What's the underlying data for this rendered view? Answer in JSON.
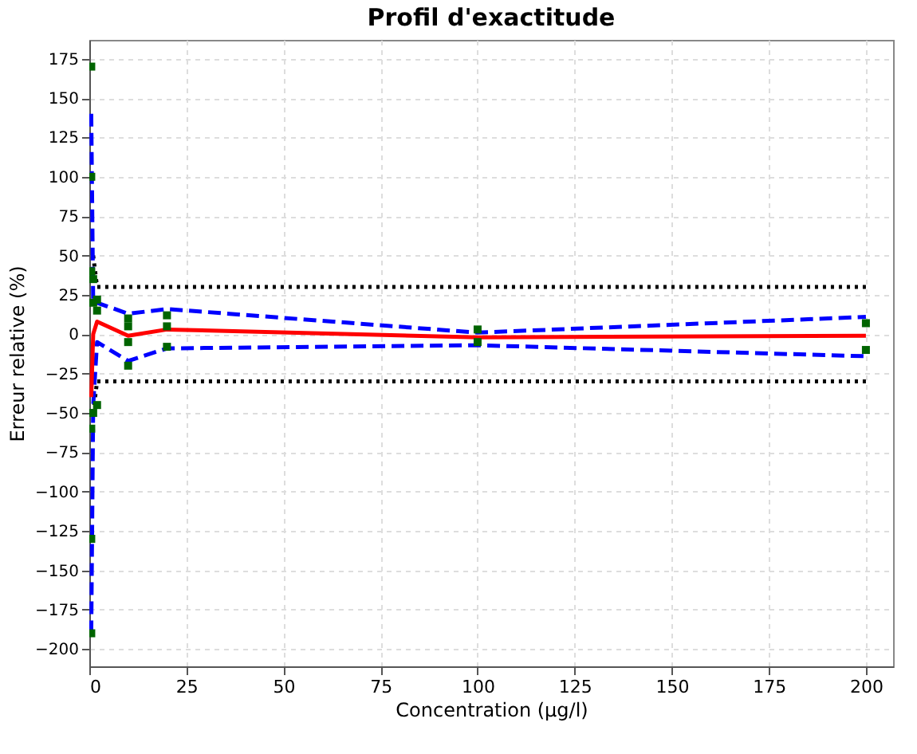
{
  "chart_data": {
    "type": "line",
    "title": "Profil d'exactitude",
    "xlabel": "Concentration (µg/l)",
    "ylabel": "Erreur relative (%)",
    "xlim": [
      0,
      207
    ],
    "xticks": [
      0,
      25,
      50,
      75,
      100,
      125,
      150,
      175,
      200
    ],
    "ylim": [
      -211,
      187
    ],
    "yticks": [
      -200,
      -175,
      -150,
      -125,
      -100,
      -75,
      -50,
      -25,
      0,
      25,
      50,
      75,
      100,
      125,
      150,
      175
    ],
    "grid": true,
    "series": [
      {
        "type": "scatter",
        "color": "#006400",
        "marker": "square",
        "x": [
          0.5,
          0.5,
          0.5,
          0.5,
          0.5,
          0.5,
          1,
          1,
          1,
          2,
          2,
          2,
          10,
          10,
          10,
          10,
          20,
          20,
          20,
          100,
          100,
          200,
          200
        ],
        "values": [
          170,
          100,
          40,
          -60,
          -130,
          -190,
          35,
          20,
          -50,
          22,
          15,
          -45,
          10,
          5,
          -5,
          -20,
          12,
          5,
          -8,
          3,
          -5,
          7,
          -10
        ]
      },
      {
        "type": "line",
        "color": "#000000",
        "line_style": "dotted",
        "x": [
          1,
          2,
          10,
          20,
          100,
          200
        ],
        "values": [
          50,
          30,
          30,
          30,
          30,
          30
        ]
      },
      {
        "type": "line",
        "color": "#000000",
        "line_style": "dotted",
        "x": [
          1,
          2,
          10,
          20,
          100,
          200
        ],
        "values": [
          -50,
          -30,
          -30,
          -30,
          -30,
          -30
        ]
      },
      {
        "type": "line",
        "color": "#0000ff",
        "line_style": "dashed",
        "x": [
          0.5,
          1,
          2,
          10,
          20,
          100,
          200
        ],
        "values": [
          140,
          20,
          20,
          13,
          16,
          1,
          11
        ]
      },
      {
        "type": "line",
        "color": "#0000ff",
        "line_style": "dashed",
        "x": [
          0.5,
          1,
          2,
          10,
          20,
          100,
          200
        ],
        "values": [
          -190,
          -45,
          -5,
          -17,
          -9,
          -7,
          -14
        ]
      },
      {
        "type": "line",
        "color": "#ff0000",
        "line_style": "solid",
        "x": [
          0.5,
          1,
          2,
          10,
          20,
          100,
          200
        ],
        "values": [
          -40,
          0,
          8,
          -1,
          3,
          -2,
          -1
        ]
      }
    ]
  }
}
